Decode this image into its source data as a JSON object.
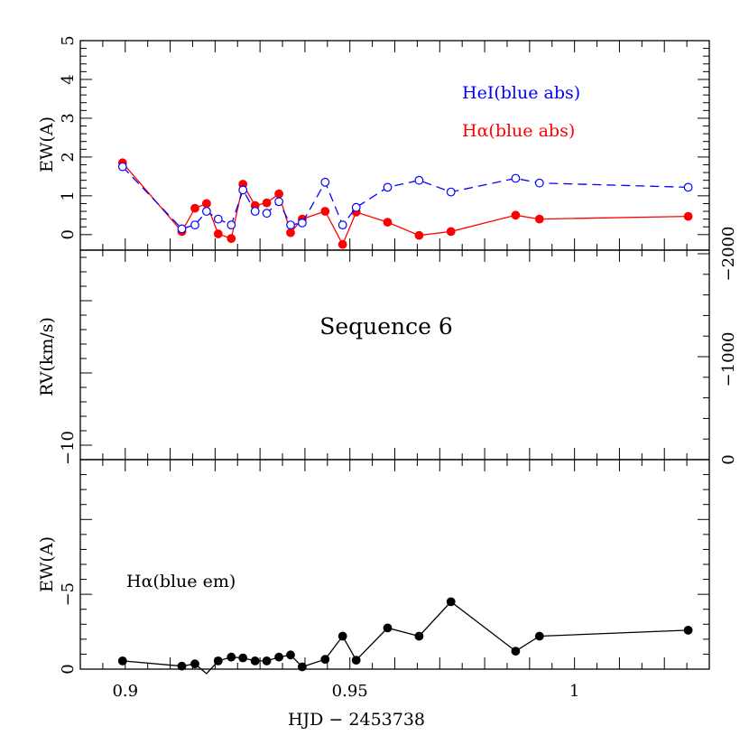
{
  "chart_data": [
    {
      "type": "line",
      "panel": "top",
      "ylabel": "EW(A)",
      "xlim": [
        0.89,
        1.03
      ],
      "ylim": [
        -0.4,
        5
      ],
      "yticks": [
        0,
        1,
        2,
        3,
        4,
        5
      ],
      "yticklabels": [
        "0",
        "1",
        "2",
        "3",
        "4",
        "5"
      ],
      "series": [
        {
          "name": "HeI(blue abs)",
          "color": "#0000ff",
          "style": "dashed-open-circles",
          "x": [
            0.8994,
            0.9126,
            0.9155,
            0.9181,
            0.9207,
            0.9236,
            0.9262,
            0.9289,
            0.9315,
            0.9342,
            0.9368,
            0.9394,
            0.9445,
            0.9484,
            0.9514,
            0.9584,
            0.9654,
            0.9725,
            0.9869,
            0.9922,
            1.0253
          ],
          "y": [
            1.75,
            0.15,
            0.25,
            0.6,
            0.4,
            0.25,
            1.15,
            0.6,
            0.55,
            0.85,
            0.25,
            0.3,
            1.35,
            0.25,
            0.7,
            1.22,
            1.4,
            1.1,
            1.45,
            1.33,
            1.22
          ]
        },
        {
          "name": "Hα(blue abs)",
          "color": "#ff0000",
          "style": "solid-filled-circles",
          "x": [
            0.8994,
            0.9126,
            0.9155,
            0.9181,
            0.9207,
            0.9236,
            0.9262,
            0.9289,
            0.9315,
            0.9342,
            0.9368,
            0.9394,
            0.9445,
            0.9484,
            0.9514,
            0.9584,
            0.9654,
            0.9725,
            0.9869,
            0.9922,
            1.0253
          ],
          "y": [
            1.85,
            0.08,
            0.68,
            0.8,
            0.02,
            -0.1,
            1.3,
            0.75,
            0.82,
            1.05,
            0.05,
            0.4,
            0.6,
            -0.25,
            0.58,
            0.32,
            -0.02,
            0.08,
            0.5,
            0.4,
            0.47
          ]
        }
      ],
      "annotations": [
        "HeI(blue abs)",
        "Hα(blue abs)"
      ]
    },
    {
      "type": "line",
      "panel": "middle",
      "ylabel": "RV(km/s)",
      "annotation": "Sequence 6",
      "left_ticklabels": [
        "−10"
      ],
      "right_ticklabels": [
        "0",
        "−1000",
        "−2000"
      ],
      "series": []
    },
    {
      "type": "line",
      "panel": "bottom",
      "ylabel": "EW(A)",
      "xlabel": "HJD − 2453738",
      "xlim": [
        0.89,
        1.03
      ],
      "ylim": [
        0,
        -14
      ],
      "yticks": [
        0,
        -5
      ],
      "yticklabels": [
        "0",
        "−5"
      ],
      "xticks": [
        0.9,
        0.95,
        1
      ],
      "xticklabels": [
        "0.9",
        "0.95",
        "1"
      ],
      "series": [
        {
          "name": "Hα(blue em)",
          "color": "#000000",
          "style": "solid-filled-circles",
          "x": [
            0.8994,
            0.9126,
            0.9155,
            0.9181,
            0.9207,
            0.9236,
            0.9262,
            0.9289,
            0.9315,
            0.9342,
            0.9368,
            0.9394,
            0.9445,
            0.9484,
            0.9514,
            0.9584,
            0.9654,
            0.9725,
            0.9869,
            0.9922,
            1.0253
          ],
          "y": [
            -0.55,
            -0.2,
            -0.35,
            0.3,
            -0.55,
            -0.8,
            -0.75,
            -0.55,
            -0.55,
            -0.8,
            -0.95,
            -0.15,
            -0.65,
            -2.2,
            -0.6,
            -2.75,
            -2.2,
            -4.5,
            -1.2,
            -2.2,
            -2.6
          ]
        }
      ],
      "annotations": [
        "Hα(blue em)"
      ]
    }
  ]
}
